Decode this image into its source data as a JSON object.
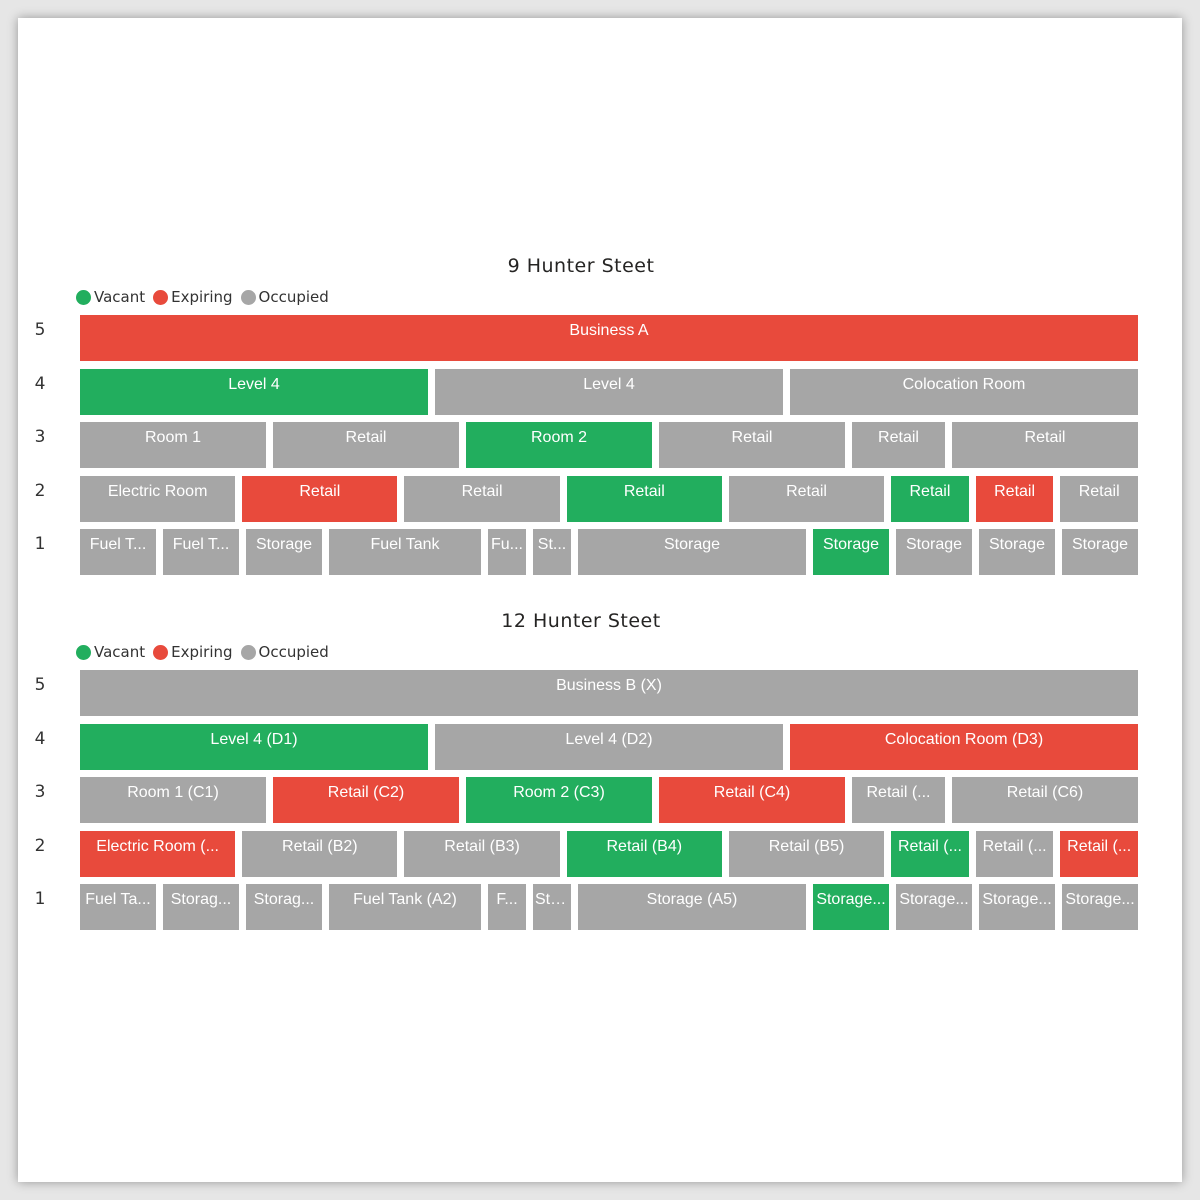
{
  "colors": {
    "vacant": "#22AE5E",
    "expiring": "#E84A3C",
    "occupied": "#A6A6A6"
  },
  "chart_data": [
    {
      "type": "treemap",
      "title": "9 Hunter Steet",
      "legend": [
        {
          "label": "Vacant",
          "status": "vacant"
        },
        {
          "label": "Expiring",
          "status": "expiring"
        },
        {
          "label": "Occupied",
          "status": "occupied"
        }
      ],
      "rows": [
        {
          "level": "5",
          "tiles": [
            {
              "label": "Business A",
              "status": "expiring",
              "span": 1
            }
          ]
        },
        {
          "level": "4",
          "tiles": [
            {
              "label": "Level 4",
              "status": "vacant",
              "span": 1
            },
            {
              "label": "Level 4",
              "status": "occupied",
              "span": 1
            },
            {
              "label": "Colocation Room",
              "status": "occupied",
              "span": 1
            }
          ]
        },
        {
          "level": "3",
          "tiles": [
            {
              "label": "Room 1",
              "status": "occupied",
              "span": 2
            },
            {
              "label": "Retail",
              "status": "occupied",
              "span": 2
            },
            {
              "label": "Room 2",
              "status": "vacant",
              "span": 2
            },
            {
              "label": "Retail",
              "status": "occupied",
              "span": 2
            },
            {
              "label": "Retail",
              "status": "occupied",
              "span": 1
            },
            {
              "label": "Retail",
              "status": "occupied",
              "span": 2
            }
          ]
        },
        {
          "level": "2",
          "tiles": [
            {
              "label": "Electric Room",
              "status": "occupied",
              "span": 2
            },
            {
              "label": "Retail",
              "status": "expiring",
              "span": 2
            },
            {
              "label": "Retail",
              "status": "occupied",
              "span": 2
            },
            {
              "label": "Retail",
              "status": "vacant",
              "span": 2
            },
            {
              "label": "Retail",
              "status": "occupied",
              "span": 2
            },
            {
              "label": "Retail",
              "status": "vacant",
              "span": 1
            },
            {
              "label": "Retail",
              "status": "expiring",
              "span": 1
            },
            {
              "label": "Retail",
              "status": "occupied",
              "span": 1
            }
          ]
        },
        {
          "level": "1",
          "tiles": [
            {
              "label": "Fuel T...",
              "status": "occupied",
              "span": 2
            },
            {
              "label": "Fuel T...",
              "status": "occupied",
              "span": 2
            },
            {
              "label": "Storage",
              "status": "occupied",
              "span": 2
            },
            {
              "label": "Fuel Tank",
              "status": "occupied",
              "span": 4
            },
            {
              "label": "Fu...",
              "status": "occupied",
              "span": 1
            },
            {
              "label": "St...",
              "status": "occupied",
              "span": 1
            },
            {
              "label": "Storage",
              "status": "occupied",
              "span": 6
            },
            {
              "label": "Storage",
              "status": "vacant",
              "span": 2
            },
            {
              "label": "Storage",
              "status": "occupied",
              "span": 2
            },
            {
              "label": "Storage",
              "status": "occupied",
              "span": 2
            },
            {
              "label": "Storage",
              "status": "occupied",
              "span": 2
            }
          ]
        }
      ]
    },
    {
      "type": "treemap",
      "title": "12 Hunter Steet",
      "legend": [
        {
          "label": "Vacant",
          "status": "vacant"
        },
        {
          "label": "Expiring",
          "status": "expiring"
        },
        {
          "label": "Occupied",
          "status": "occupied"
        }
      ],
      "rows": [
        {
          "level": "5",
          "tiles": [
            {
              "label": "Business B (X)",
              "status": "occupied",
              "span": 1
            }
          ]
        },
        {
          "level": "4",
          "tiles": [
            {
              "label": "Level 4 (D1)",
              "status": "vacant",
              "span": 1
            },
            {
              "label": "Level 4 (D2)",
              "status": "occupied",
              "span": 1
            },
            {
              "label": "Colocation Room (D3)",
              "status": "expiring",
              "span": 1
            }
          ]
        },
        {
          "level": "3",
          "tiles": [
            {
              "label": "Room 1 (C1)",
              "status": "occupied",
              "span": 2
            },
            {
              "label": "Retail (C2)",
              "status": "expiring",
              "span": 2
            },
            {
              "label": "Room 2 (C3)",
              "status": "vacant",
              "span": 2
            },
            {
              "label": "Retail (C4)",
              "status": "expiring",
              "span": 2
            },
            {
              "label": "Retail (...",
              "status": "occupied",
              "span": 1
            },
            {
              "label": "Retail (C6)",
              "status": "occupied",
              "span": 2
            }
          ]
        },
        {
          "level": "2",
          "tiles": [
            {
              "label": "Electric Room (...",
              "status": "expiring",
              "span": 2
            },
            {
              "label": "Retail (B2)",
              "status": "occupied",
              "span": 2
            },
            {
              "label": "Retail (B3)",
              "status": "occupied",
              "span": 2
            },
            {
              "label": "Retail (B4)",
              "status": "vacant",
              "span": 2
            },
            {
              "label": "Retail (B5)",
              "status": "occupied",
              "span": 2
            },
            {
              "label": "Retail (...",
              "status": "vacant",
              "span": 1
            },
            {
              "label": "Retail (...",
              "status": "occupied",
              "span": 1
            },
            {
              "label": "Retail (...",
              "status": "expiring",
              "span": 1
            }
          ]
        },
        {
          "level": "1",
          "tiles": [
            {
              "label": "Fuel Ta...",
              "status": "occupied",
              "span": 2
            },
            {
              "label": "Storag...",
              "status": "occupied",
              "span": 2
            },
            {
              "label": "Storag...",
              "status": "occupied",
              "span": 2
            },
            {
              "label": "Fuel Tank (A2)",
              "status": "occupied",
              "span": 4
            },
            {
              "label": "F...",
              "status": "occupied",
              "span": 1
            },
            {
              "label": "Sto...",
              "status": "occupied",
              "span": 1
            },
            {
              "label": "Storage (A5)",
              "status": "occupied",
              "span": 6
            },
            {
              "label": "Storage...",
              "status": "vacant",
              "span": 2
            },
            {
              "label": "Storage...",
              "status": "occupied",
              "span": 2
            },
            {
              "label": "Storage...",
              "status": "occupied",
              "span": 2
            },
            {
              "label": "Storage...",
              "status": "occupied",
              "span": 2
            }
          ]
        }
      ]
    }
  ]
}
